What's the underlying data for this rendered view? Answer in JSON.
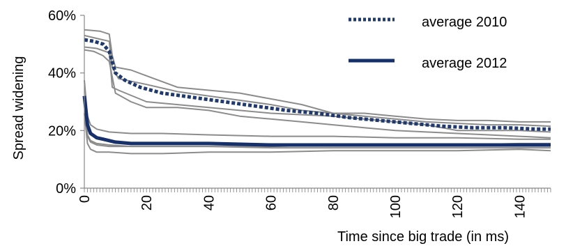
{
  "chart_data": {
    "type": "line",
    "xlabel": "Time since big trade (in ms)",
    "ylabel": "Spread widening",
    "xlim": [
      0,
      150
    ],
    "ylim": [
      0,
      60
    ],
    "x_ticks": [
      0,
      20,
      40,
      60,
      80,
      100,
      120,
      140
    ],
    "y_ticks": [
      0,
      20,
      40,
      60
    ],
    "y_tick_labels": [
      "0%",
      "20%",
      "40%",
      "60%"
    ],
    "grid": false,
    "legend_position": "top-right",
    "colors": {
      "average_2010": "#1f3a6e",
      "average_2012": "#15306b",
      "individual": "#8c8c8c"
    },
    "legend": [
      {
        "label": "average 2010",
        "style": "dotted"
      },
      {
        "label": "average 2012",
        "style": "solid"
      }
    ],
    "series": [
      {
        "name": "average 2010",
        "style": "dotted",
        "points": [
          [
            0,
            51.5
          ],
          [
            3,
            51
          ],
          [
            6,
            50
          ],
          [
            8,
            47.5
          ],
          [
            10,
            40
          ],
          [
            13,
            37.5
          ],
          [
            18,
            35
          ],
          [
            25,
            33
          ],
          [
            35,
            31.5
          ],
          [
            45,
            30
          ],
          [
            55,
            28.5
          ],
          [
            65,
            27
          ],
          [
            75,
            26
          ],
          [
            85,
            24.5
          ],
          [
            95,
            23.5
          ],
          [
            105,
            22.5
          ],
          [
            115,
            21.5
          ],
          [
            125,
            21
          ],
          [
            135,
            21
          ],
          [
            145,
            20.5
          ],
          [
            150,
            20.5
          ]
        ]
      },
      {
        "name": "average 2012",
        "style": "solid",
        "points": [
          [
            0,
            32
          ],
          [
            1,
            22
          ],
          [
            2,
            19
          ],
          [
            4,
            17.5
          ],
          [
            6,
            17
          ],
          [
            10,
            16
          ],
          [
            15,
            15.5
          ],
          [
            20,
            15.5
          ],
          [
            40,
            15.5
          ],
          [
            60,
            15
          ],
          [
            80,
            15
          ],
          [
            100,
            15
          ],
          [
            120,
            15
          ],
          [
            140,
            15
          ],
          [
            150,
            15
          ]
        ]
      },
      {
        "style": "individual-2010",
        "points": [
          [
            0,
            55
          ],
          [
            5,
            54.5
          ],
          [
            8,
            53.5
          ],
          [
            9,
            46
          ],
          [
            10,
            42
          ],
          [
            15,
            41
          ],
          [
            20,
            39
          ],
          [
            30,
            35
          ],
          [
            40,
            34
          ],
          [
            50,
            33
          ],
          [
            60,
            31
          ],
          [
            70,
            29
          ],
          [
            80,
            26
          ],
          [
            90,
            26
          ],
          [
            100,
            25
          ],
          [
            110,
            24
          ],
          [
            120,
            23.5
          ],
          [
            130,
            23.5
          ],
          [
            140,
            23
          ],
          [
            150,
            23
          ]
        ]
      },
      {
        "style": "individual-2010",
        "points": [
          [
            0,
            53
          ],
          [
            4,
            52
          ],
          [
            8,
            51
          ],
          [
            9,
            42
          ],
          [
            11,
            38
          ],
          [
            20,
            36
          ],
          [
            30,
            33.5
          ],
          [
            40,
            32
          ],
          [
            50,
            30.5
          ],
          [
            60,
            29
          ],
          [
            70,
            27
          ],
          [
            80,
            26
          ],
          [
            90,
            25
          ],
          [
            100,
            24
          ],
          [
            110,
            23
          ],
          [
            120,
            22.5
          ],
          [
            130,
            22
          ],
          [
            140,
            22
          ],
          [
            150,
            21.5
          ]
        ]
      },
      {
        "style": "individual-2010",
        "points": [
          [
            0,
            49
          ],
          [
            4,
            48.5
          ],
          [
            8,
            47
          ],
          [
            9,
            35
          ],
          [
            11,
            34
          ],
          [
            20,
            30
          ],
          [
            30,
            29
          ],
          [
            40,
            28
          ],
          [
            50,
            27
          ],
          [
            60,
            26
          ],
          [
            70,
            25.5
          ],
          [
            80,
            25
          ],
          [
            90,
            24
          ],
          [
            100,
            23
          ],
          [
            110,
            22
          ],
          [
            120,
            20
          ],
          [
            130,
            20
          ],
          [
            140,
            20
          ],
          [
            150,
            19.5
          ]
        ]
      },
      {
        "style": "individual-2010",
        "points": [
          [
            0,
            48
          ],
          [
            3,
            47.5
          ],
          [
            6,
            46
          ],
          [
            8,
            44
          ],
          [
            10,
            33
          ],
          [
            15,
            30
          ],
          [
            20,
            28
          ],
          [
            30,
            28
          ],
          [
            40,
            27
          ],
          [
            50,
            25
          ],
          [
            60,
            24
          ],
          [
            70,
            23
          ],
          [
            80,
            22
          ],
          [
            90,
            21
          ],
          [
            100,
            20
          ],
          [
            110,
            19.5
          ],
          [
            120,
            19
          ],
          [
            130,
            18.5
          ],
          [
            140,
            18
          ],
          [
            150,
            17.5
          ]
        ]
      },
      {
        "style": "individual-2012",
        "points": [
          [
            0,
            37.5
          ],
          [
            1,
            25
          ],
          [
            2,
            22
          ],
          [
            4,
            20.5
          ],
          [
            8,
            19.5
          ],
          [
            15,
            19
          ],
          [
            25,
            19
          ],
          [
            40,
            18.5
          ],
          [
            60,
            18
          ],
          [
            80,
            18
          ],
          [
            100,
            17.5
          ],
          [
            120,
            17.5
          ],
          [
            140,
            17
          ],
          [
            150,
            17
          ]
        ]
      },
      {
        "style": "individual-2012",
        "points": [
          [
            0,
            29
          ],
          [
            1,
            18.5
          ],
          [
            2,
            16.5
          ],
          [
            4,
            15.5
          ],
          [
            8,
            15
          ],
          [
            15,
            14.5
          ],
          [
            25,
            14.5
          ],
          [
            40,
            14.5
          ],
          [
            60,
            14
          ],
          [
            80,
            14
          ],
          [
            100,
            14
          ],
          [
            120,
            14
          ],
          [
            140,
            14
          ],
          [
            150,
            14
          ]
        ]
      },
      {
        "style": "individual-2012",
        "points": [
          [
            0,
            26
          ],
          [
            1,
            15.5
          ],
          [
            2,
            13.5
          ],
          [
            4,
            12.5
          ],
          [
            8,
            12.5
          ],
          [
            15,
            12
          ],
          [
            25,
            12
          ],
          [
            40,
            12.5
          ],
          [
            60,
            12.5
          ],
          [
            80,
            13
          ],
          [
            100,
            13
          ],
          [
            120,
            13
          ],
          [
            140,
            13.5
          ],
          [
            150,
            13
          ]
        ]
      },
      {
        "style": "individual-2012",
        "points": [
          [
            0,
            30
          ],
          [
            1,
            18
          ],
          [
            2,
            16
          ],
          [
            4,
            15
          ],
          [
            8,
            14.5
          ],
          [
            15,
            14.5
          ],
          [
            25,
            14.5
          ],
          [
            40,
            14.5
          ],
          [
            60,
            14.5
          ],
          [
            80,
            15
          ],
          [
            100,
            15
          ],
          [
            120,
            15
          ],
          [
            140,
            15.5
          ],
          [
            150,
            15.5
          ]
        ]
      }
    ]
  }
}
